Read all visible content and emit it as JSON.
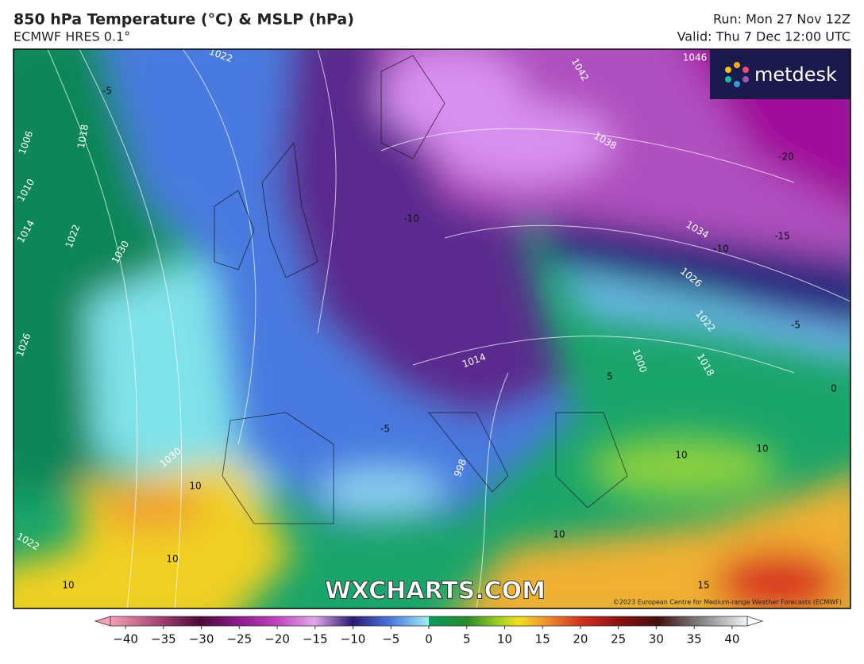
{
  "header": {
    "title": "850 hPa Temperature (°C) & MSLP (hPa)",
    "subtitle": "ECMWF HRES 0.1°",
    "run": "Run: Mon 27 Nov 12Z",
    "valid": "Valid: Thu 7 Dec 12:00 UTC"
  },
  "logo": "metdesk",
  "map": {
    "labels": [
      "1022",
      "-5",
      "1006",
      "1018",
      "1010",
      "1014",
      "1022",
      "1030",
      "1026",
      "1030",
      "10",
      "10",
      "1022",
      "10",
      "1042",
      "1046",
      "1038",
      "-20",
      "-15",
      "1034",
      "-10",
      "1026",
      "1022",
      "-5",
      "1018",
      "1000",
      "5",
      "0",
      "1014",
      "-10",
      "-5",
      "998",
      "10",
      "10",
      "10",
      "15"
    ],
    "watermark": "WXCHARTS.COM",
    "credit": "©2023 European Centre for Medium-range Weather Forecasts (ECMWF)"
  },
  "colorbar": {
    "range": [
      -42,
      42
    ],
    "ticks": [
      {
        "value": -40,
        "label": "−40"
      },
      {
        "value": -35,
        "label": "−35"
      },
      {
        "value": -30,
        "label": "−30"
      },
      {
        "value": -25,
        "label": "−25"
      },
      {
        "value": -20,
        "label": "−20"
      },
      {
        "value": -15,
        "label": "−15"
      },
      {
        "value": -10,
        "label": "−10"
      },
      {
        "value": -5,
        "label": "−5"
      },
      0,
      5,
      10,
      15,
      20,
      25,
      30,
      35,
      40
    ]
  }
}
